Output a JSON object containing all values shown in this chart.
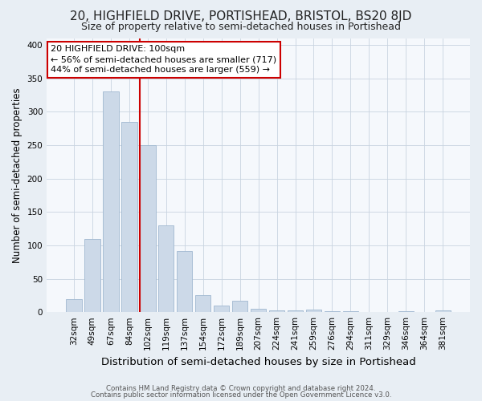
{
  "title": "20, HIGHFIELD DRIVE, PORTISHEAD, BRISTOL, BS20 8JD",
  "subtitle": "Size of property relative to semi-detached houses in Portishead",
  "xlabel": "Distribution of semi-detached houses by size in Portishead",
  "ylabel": "Number of semi-detached properties",
  "bar_labels": [
    "32sqm",
    "49sqm",
    "67sqm",
    "84sqm",
    "102sqm",
    "119sqm",
    "137sqm",
    "154sqm",
    "172sqm",
    "189sqm",
    "207sqm",
    "224sqm",
    "241sqm",
    "259sqm",
    "276sqm",
    "294sqm",
    "311sqm",
    "329sqm",
    "346sqm",
    "364sqm",
    "381sqm"
  ],
  "bar_values": [
    20,
    110,
    330,
    285,
    250,
    130,
    92,
    25,
    10,
    17,
    5,
    3,
    3,
    4,
    2,
    2,
    0,
    0,
    2,
    0,
    3
  ],
  "bar_color": "#ccd9e8",
  "bar_edgecolor": "#a0b8d0",
  "highlight_x_label": "102sqm",
  "highlight_line_color": "#cc0000",
  "annotation_title": "20 HIGHFIELD DRIVE: 100sqm",
  "annotation_line1": "← 56% of semi-detached houses are smaller (717)",
  "annotation_line2": "44% of semi-detached houses are larger (559) →",
  "annotation_box_edgecolor": "#cc0000",
  "annotation_box_facecolor": "#ffffff",
  "footer1": "Contains HM Land Registry data © Crown copyright and database right 2024.",
  "footer2": "Contains public sector information licensed under the Open Government Licence v3.0.",
  "ylim": [
    0,
    410
  ],
  "title_fontsize": 11,
  "subtitle_fontsize": 9,
  "xlabel_fontsize": 9.5,
  "ylabel_fontsize": 8.5,
  "tick_fontsize": 7.5,
  "annotation_fontsize": 8,
  "background_color": "#e8eef4",
  "axes_background": "#f5f8fc"
}
